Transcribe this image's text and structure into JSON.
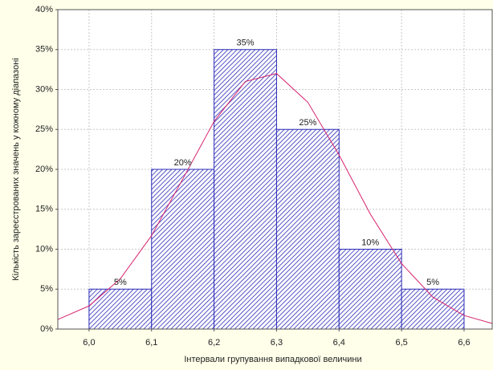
{
  "chart_data": {
    "type": "histogram",
    "xlabel": "Інтервали групування випадкової величини",
    "ylabel": "Кількість зареєстрованих значень у кожному діапазоні",
    "bins": [
      6.0,
      6.1,
      6.2,
      6.3,
      6.4,
      6.5,
      6.6
    ],
    "values": [
      5,
      20,
      35,
      25,
      10,
      5
    ],
    "value_labels": [
      "5%",
      "20%",
      "35%",
      "25%",
      "10%",
      "5%"
    ],
    "color": "#2b2bb8",
    "curve": {
      "color": "#d6246e",
      "x": [
        5.95,
        6.0,
        6.05,
        6.1,
        6.15,
        6.2,
        6.25,
        6.3,
        6.35,
        6.4,
        6.45,
        6.5,
        6.55,
        6.6,
        6.645
      ],
      "values": [
        1.2,
        2.9,
        6.3,
        11.7,
        18.8,
        26.0,
        31.0,
        32.0,
        28.4,
        21.8,
        14.4,
        8.2,
        4.0,
        1.7,
        0.7
      ]
    },
    "xlim": [
      5.95,
      6.645
    ],
    "ylim": [
      0,
      40
    ],
    "xticks": [
      {
        "value": 6.0,
        "label": "6,0"
      },
      {
        "value": 6.1,
        "label": "6,1"
      },
      {
        "value": 6.2,
        "label": "6,2"
      },
      {
        "value": 6.3,
        "label": "6,3"
      },
      {
        "value": 6.4,
        "label": "6,4"
      },
      {
        "value": 6.5,
        "label": "6,5"
      },
      {
        "value": 6.6,
        "label": "6,6"
      }
    ],
    "yticks": [
      {
        "value": 0,
        "label": "0%"
      },
      {
        "value": 5,
        "label": "5%"
      },
      {
        "value": 10,
        "label": "10%"
      },
      {
        "value": 15,
        "label": "15%"
      },
      {
        "value": 20,
        "label": "20%"
      },
      {
        "value": 25,
        "label": "25%"
      },
      {
        "value": 30,
        "label": "30%"
      },
      {
        "value": 35,
        "label": "35%"
      },
      {
        "value": 40,
        "label": "40%"
      }
    ],
    "grid": true
  }
}
